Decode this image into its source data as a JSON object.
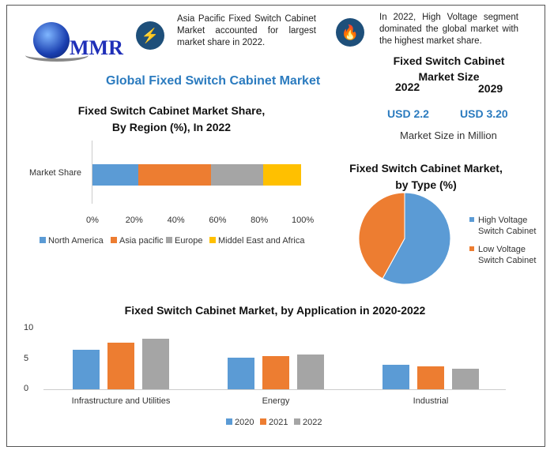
{
  "logo": {
    "text": "MMR"
  },
  "notes": [
    {
      "icon": "lightning-icon",
      "text": "Asia Pacific Fixed Switch Cabinet Market accounted for largest market share in 2022."
    },
    {
      "icon": "flame-icon",
      "text": "In 2022, High Voltage segment dominated the global market with the highest market share."
    }
  ],
  "title": "Global Fixed Switch Cabinet Market",
  "market_size": {
    "title": "Fixed Switch Cabinet Market Size",
    "year1": "2022",
    "year2": "2029",
    "value1": "USD 2.2",
    "value2": "USD 3.20",
    "unit": "Market Size in Million"
  },
  "colors": {
    "blue": "#5b9bd5",
    "orange": "#ed7d31",
    "gray": "#a5a5a5",
    "yellow": "#ffc000"
  },
  "chart_data": [
    {
      "type": "bar",
      "stacked": true,
      "orientation": "horizontal",
      "title": "Fixed Switch Cabinet Market Share, By Region (%), In 2022",
      "categories": [
        "Market Share"
      ],
      "series": [
        {
          "name": "North America",
          "values": [
            22
          ]
        },
        {
          "name": "Asia pacific",
          "values": [
            35
          ]
        },
        {
          "name": "Europe",
          "values": [
            25
          ]
        },
        {
          "name": "Middel East and Africa",
          "values": [
            18
          ]
        }
      ],
      "xticks": [
        "0%",
        "20%",
        "40%",
        "60%",
        "80%",
        "100%"
      ],
      "xlim": [
        0,
        100
      ],
      "legend": "bottom"
    },
    {
      "type": "pie",
      "title": "Fixed Switch Cabinet Market, by Type (%)",
      "labels": [
        "High Voltage Switch Cabinet",
        "Low Voltage Switch Cabinet"
      ],
      "values": [
        58,
        42
      ],
      "legend": "right"
    },
    {
      "type": "bar",
      "title": "Fixed Switch Cabinet Market, by Application in 2020-2022",
      "categories": [
        "Infrastructure and Utilities",
        "Energy",
        "Industrial"
      ],
      "series": [
        {
          "name": "2020",
          "values": [
            6.5,
            5.2,
            4.0
          ]
        },
        {
          "name": "2021",
          "values": [
            7.7,
            5.5,
            3.8
          ]
        },
        {
          "name": "2022",
          "values": [
            8.3,
            5.7,
            3.4
          ]
        }
      ],
      "yticks": [
        "0",
        "5",
        "10"
      ],
      "ylim": [
        0,
        10
      ],
      "legend": "bottom"
    }
  ]
}
